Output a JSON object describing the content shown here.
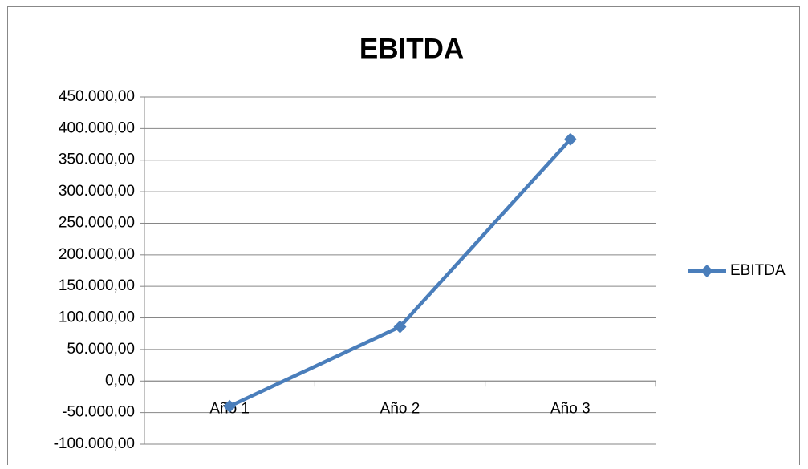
{
  "chart_data": {
    "type": "line",
    "title": "EBITDA",
    "categories": [
      "Año 1",
      "Año 2",
      "Año 3"
    ],
    "series": [
      {
        "name": "EBITDA",
        "color": "#4a7ebb",
        "values": [
          -40000,
          86000,
          383000
        ]
      }
    ],
    "ylim": [
      -100000,
      450000
    ],
    "yticks": [
      {
        "value": -100000,
        "label": "-100.000,00"
      },
      {
        "value": -50000,
        "label": "-50.000,00"
      },
      {
        "value": 0,
        "label": "0,00"
      },
      {
        "value": 50000,
        "label": "50.000,00"
      },
      {
        "value": 100000,
        "label": "100.000,00"
      },
      {
        "value": 150000,
        "label": "150.000,00"
      },
      {
        "value": 200000,
        "label": "200.000,00"
      },
      {
        "value": 250000,
        "label": "250.000,00"
      },
      {
        "value": 300000,
        "label": "300.000,00"
      },
      {
        "value": 350000,
        "label": "350.000,00"
      },
      {
        "value": 400000,
        "label": "400.000,00"
      },
      {
        "value": 450000,
        "label": "450.000,00"
      }
    ],
    "grid": true,
    "legend": "right"
  }
}
